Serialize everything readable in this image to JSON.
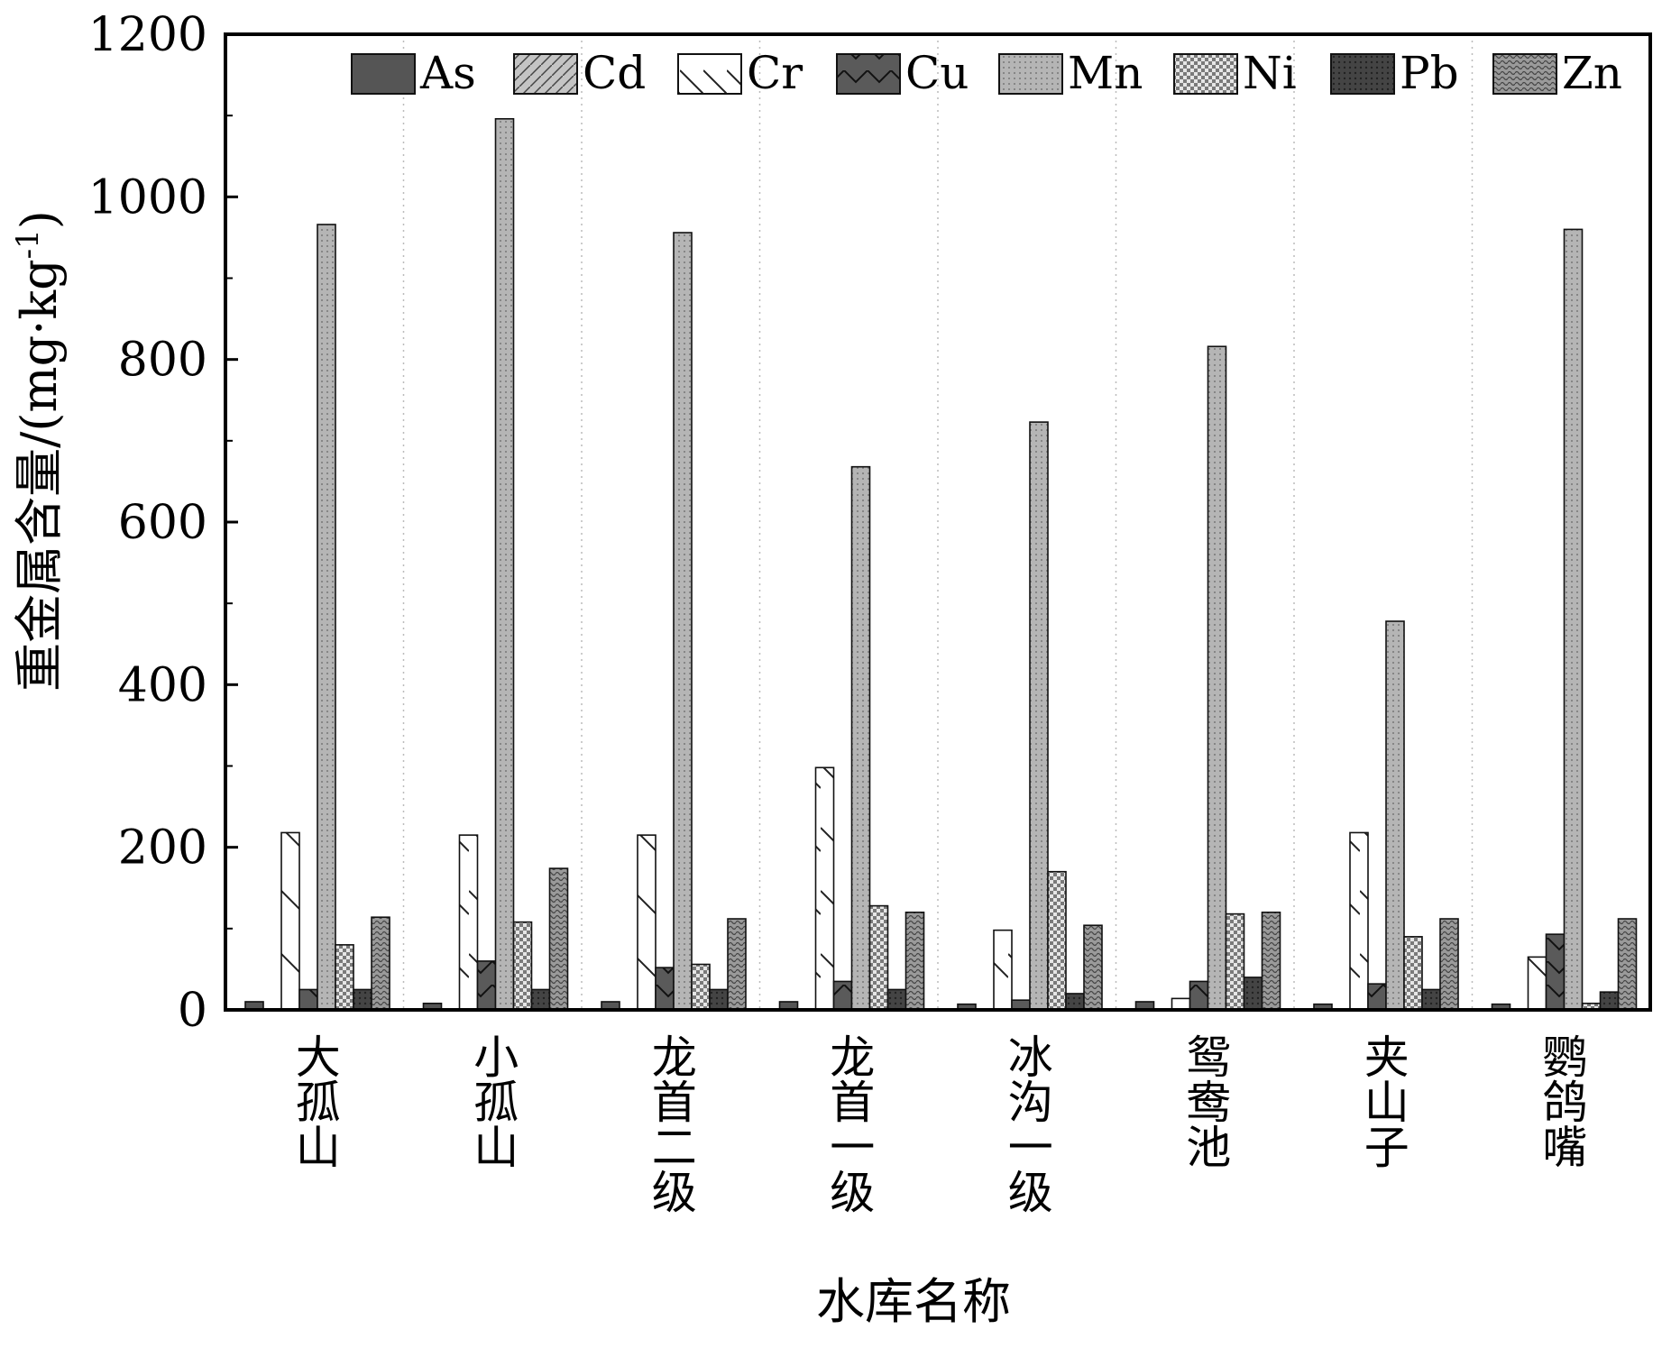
{
  "chart_data": {
    "type": "bar",
    "title": "",
    "xlabel": "水库名称",
    "ylabel": "重金属含量/(mg·kg",
    "ylabel_superscript": "-1",
    "ylabel_close": ")",
    "ylim": [
      0,
      1200
    ],
    "yticks": [
      0,
      200,
      400,
      600,
      800,
      1000,
      1200
    ],
    "grid": "vertical dotted lines between categories",
    "legend_position": "top",
    "categories": [
      "大孤山",
      "小孤山",
      "龙首二级",
      "龙首一级",
      "冰沟一级",
      "鸳鸯池",
      "夹山子",
      "鹦鸽嘴"
    ],
    "series": [
      {
        "name": "As",
        "values": [
          10,
          8,
          10,
          10,
          7,
          10,
          7,
          7
        ],
        "fill": "#555555",
        "pattern": "solid"
      },
      {
        "name": "Cd",
        "values": [
          1,
          1,
          1,
          1,
          1,
          1,
          1,
          1
        ],
        "fill": "#bdbdbd",
        "pattern": "slash"
      },
      {
        "name": "Cr",
        "values": [
          218,
          215,
          215,
          298,
          98,
          14,
          218,
          65
        ],
        "fill": "#ffffff",
        "pattern": "backslash"
      },
      {
        "name": "Cu",
        "values": [
          25,
          60,
          52,
          35,
          12,
          35,
          32,
          93
        ],
        "fill": "#5a5a5a",
        "pattern": "vline"
      },
      {
        "name": "Mn",
        "values": [
          966,
          1096,
          956,
          668,
          723,
          816,
          478,
          960
        ],
        "fill": "#b5b5b5",
        "pattern": "dots"
      },
      {
        "name": "Ni",
        "values": [
          80,
          108,
          56,
          128,
          170,
          118,
          90,
          8
        ],
        "fill": "#d8d8d8",
        "pattern": "checker"
      },
      {
        "name": "Pb",
        "values": [
          25,
          25,
          25,
          25,
          20,
          40,
          25,
          22
        ],
        "fill": "#4a4a4a",
        "pattern": "dots-dark"
      },
      {
        "name": "Zn",
        "values": [
          114,
          174,
          112,
          120,
          104,
          120,
          112,
          112
        ],
        "fill": "#8a8a8a",
        "pattern": "hatch"
      }
    ]
  }
}
